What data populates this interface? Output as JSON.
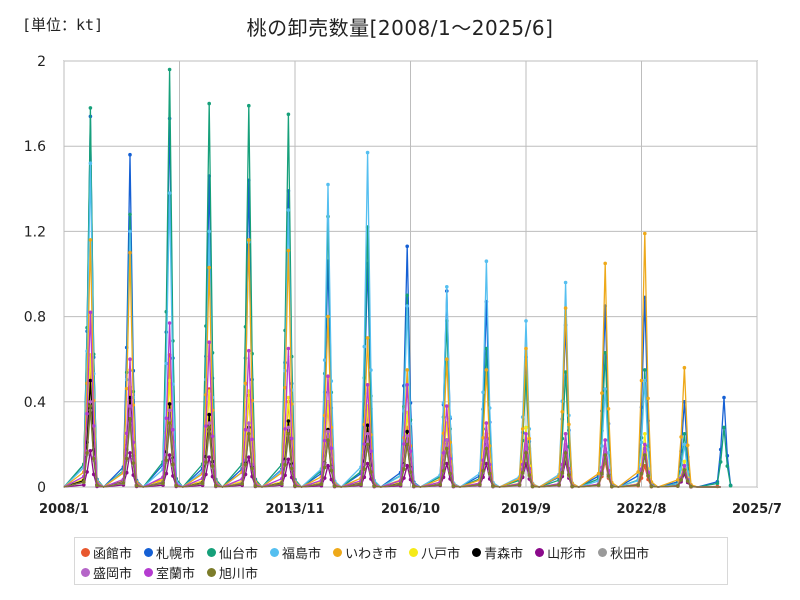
{
  "unit_label": "[単位：kt]",
  "title": "桃の卸売数量[2008/1～2025/6]",
  "chart_data": {
    "type": "line",
    "title": "桃の卸売数量[2008/1～2025/6]",
    "ylabel": "[単位：kt]",
    "xlim": [
      "2008/1",
      "2025/7"
    ],
    "ylim": [
      0,
      2
    ],
    "y_ticks": [
      "0",
      "0.4",
      "0.8",
      "1.2",
      "1.6",
      "2"
    ],
    "x_ticks": [
      "2008/1",
      "2010/12",
      "2013/11",
      "2016/10",
      "2019/9",
      "2022/8",
      "2025/7"
    ],
    "grid": true,
    "legend_position": "bottom",
    "series": [
      {
        "name": "函館市",
        "color": "#e8582e",
        "peaks": [
          0.55,
          0.47,
          0.62,
          0.46,
          0.43,
          0.4,
          0.38,
          0.36,
          0.28,
          0.2,
          0.25,
          0.18,
          0.15,
          0.12,
          0.1,
          0.08,
          0.05
        ],
        "x_last": "2024/7"
      },
      {
        "name": "札幌市",
        "color": "#1560d4",
        "peaks": [
          1.74,
          1.56,
          1.73,
          1.46,
          1.44,
          1.39,
          1.06,
          1.05,
          1.13,
          0.92,
          0.87,
          0.61,
          0.76,
          0.85,
          0.89,
          0.4,
          0.42
        ],
        "x_last": "2025/6"
      },
      {
        "name": "仙台市",
        "color": "#16a07a",
        "peaks": [
          1.78,
          1.28,
          1.96,
          1.8,
          1.79,
          1.75,
          1.27,
          1.22,
          0.9,
          0.78,
          0.65,
          0.52,
          0.54,
          0.63,
          0.55,
          0.25,
          0.28
        ],
        "x_last": "2025/6"
      },
      {
        "name": "福島市",
        "color": "#55bff0",
        "peaks": [
          1.52,
          1.2,
          1.38,
          1.2,
          1.15,
          1.3,
          1.42,
          1.57,
          0.85,
          0.94,
          1.06,
          0.78,
          0.96,
          0.46,
          0.5,
          0.2,
          0.0
        ],
        "x_last": "2024/7"
      },
      {
        "name": "いわき市",
        "color": "#eea91a",
        "peaks": [
          1.16,
          1.1,
          0.6,
          1.03,
          1.16,
          1.11,
          0.8,
          0.7,
          0.55,
          0.6,
          0.55,
          0.65,
          0.84,
          1.05,
          1.19,
          0.56,
          0.0
        ],
        "x_last": "2024/8"
      },
      {
        "name": "八戸市",
        "color": "#f5ea18",
        "peaks": [
          0.62,
          0.55,
          0.5,
          0.45,
          0.45,
          0.42,
          0.4,
          0.38,
          0.35,
          0.3,
          0.3,
          0.28,
          0.25,
          0.22,
          0.25,
          0.12,
          0.0
        ],
        "x_last": "2024/8"
      },
      {
        "name": "青森市",
        "color": "#000000",
        "peaks": [
          0.5,
          0.42,
          0.39,
          0.34,
          0.28,
          0.31,
          0.27,
          0.29,
          0.26,
          0.22,
          0.2,
          0.19,
          0.17,
          0.17,
          0.18,
          0.08,
          0.0
        ],
        "x_last": "2024/8"
      },
      {
        "name": "山形市",
        "color": "#8b0a8b",
        "peaks": [
          0.17,
          0.16,
          0.15,
          0.14,
          0.14,
          0.13,
          0.1,
          0.11,
          0.1,
          0.11,
          0.11,
          0.11,
          0.12,
          0.14,
          0.15,
          0.06,
          0.0
        ],
        "x_last": "2024/8"
      },
      {
        "name": "秋田市",
        "color": "#9a9a9a",
        "peaks": [
          0.36,
          0.3,
          0.28,
          0.26,
          0.25,
          0.24,
          0.22,
          0.2,
          0.2,
          0.18,
          0.17,
          0.15,
          0.15,
          0.14,
          0.15,
          0.08,
          0.0
        ],
        "x_last": "2024/8"
      },
      {
        "name": "盛岡市",
        "color": "#b565c8",
        "peaks": [
          0.4,
          0.38,
          0.36,
          0.3,
          0.3,
          0.28,
          0.26,
          0.25,
          0.24,
          0.22,
          0.22,
          0.2,
          0.2,
          0.18,
          0.18,
          0.1,
          0.0
        ],
        "x_last": "2024/8"
      },
      {
        "name": "室蘭市",
        "color": "#b53cd0",
        "peaks": [
          0.82,
          0.6,
          0.77,
          0.68,
          0.64,
          0.65,
          0.52,
          0.48,
          0.48,
          0.38,
          0.3,
          0.25,
          0.25,
          0.22,
          0.2,
          0.1,
          0.0
        ],
        "x_last": "2024/8"
      },
      {
        "name": "旭川市",
        "color": "#7c7c2a",
        "peaks": [
          0.38,
          0.32,
          0.3,
          0.28,
          0.25,
          0.25,
          0.22,
          0.2,
          0.2,
          0.18,
          0.18,
          0.16,
          0.16,
          0.15,
          0.15,
          0.08,
          0.0
        ],
        "x_last": "2024/8"
      }
    ]
  }
}
